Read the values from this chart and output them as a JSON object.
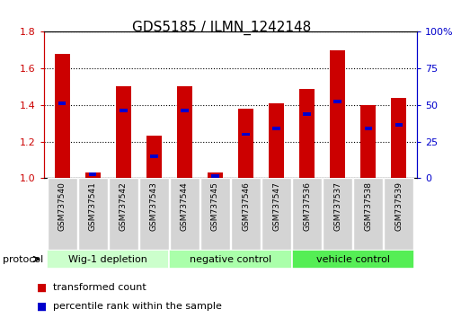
{
  "title": "GDS5185 / ILMN_1242148",
  "samples": [
    "GSM737540",
    "GSM737541",
    "GSM737542",
    "GSM737543",
    "GSM737544",
    "GSM737545",
    "GSM737546",
    "GSM737547",
    "GSM737536",
    "GSM737537",
    "GSM737538",
    "GSM737539"
  ],
  "red_values": [
    1.68,
    1.03,
    1.5,
    1.23,
    1.5,
    1.03,
    1.38,
    1.41,
    1.49,
    1.7,
    1.4,
    1.44
  ],
  "blue_values": [
    1.41,
    1.02,
    1.37,
    1.12,
    1.37,
    1.01,
    1.24,
    1.27,
    1.35,
    1.42,
    1.27,
    1.29
  ],
  "groups": [
    {
      "label": "Wig-1 depletion",
      "start": 0,
      "end": 3,
      "color": "#ccffcc"
    },
    {
      "label": "negative control",
      "start": 4,
      "end": 7,
      "color": "#aaffaa"
    },
    {
      "label": "vehicle control",
      "start": 8,
      "end": 11,
      "color": "#55ee55"
    }
  ],
  "ylim_left": [
    1.0,
    1.8
  ],
  "ylim_right": [
    0,
    100
  ],
  "yticks_left": [
    1.0,
    1.2,
    1.4,
    1.6,
    1.8
  ],
  "yticks_right": [
    0,
    25,
    50,
    75,
    100
  ],
  "ytick_labels_right": [
    "0",
    "25",
    "50",
    "75",
    "100%"
  ],
  "bar_color": "#cc0000",
  "blue_color": "#0000cc",
  "bar_width": 0.5,
  "title_fontsize": 11,
  "background_color": "#ffffff",
  "plot_bg": "#ffffff",
  "legend_red": "transformed count",
  "legend_blue": "percentile rank within the sample",
  "protocol_label": "protocol"
}
